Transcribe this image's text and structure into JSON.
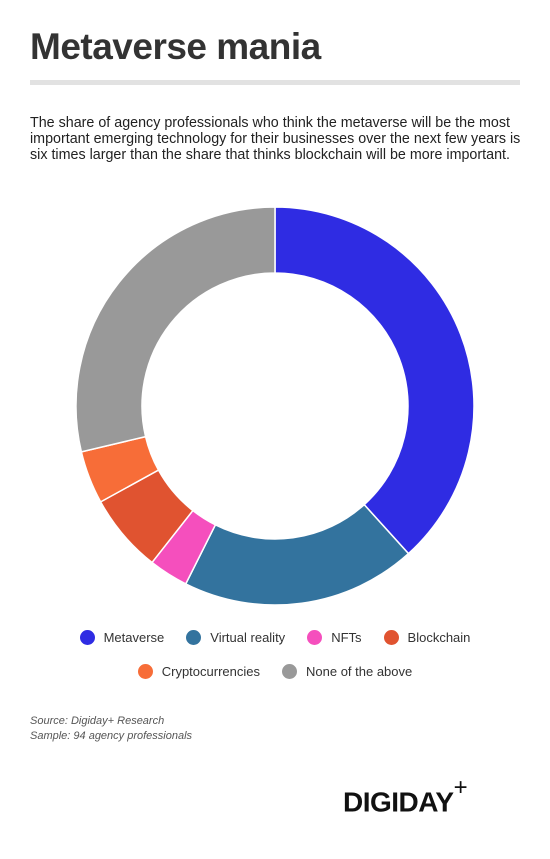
{
  "chart_data": {
    "type": "donut",
    "title": "Metaverse mania",
    "subtitle": "The share of agency professionals who think the metaverse will be the most important emerging technology for their businesses over the next few years is six times larger than the share that thinks blockchain will be more important.",
    "categories": [
      "Metaverse",
      "Virtual reality",
      "NFTs",
      "Blockchain",
      "Cryptocurrencies",
      "None of the above"
    ],
    "values": [
      38.3,
      19.1,
      3.2,
      6.4,
      4.3,
      28.7
    ],
    "colors": [
      "#2f2ce3",
      "#33739e",
      "#f54fbd",
      "#e05330",
      "#f76d38",
      "#999999"
    ],
    "source": "Source: Digiday+ Research",
    "sample": "Sample: 94 agency professionals",
    "logo": "DIGIDAY",
    "logo_plus": "+"
  }
}
